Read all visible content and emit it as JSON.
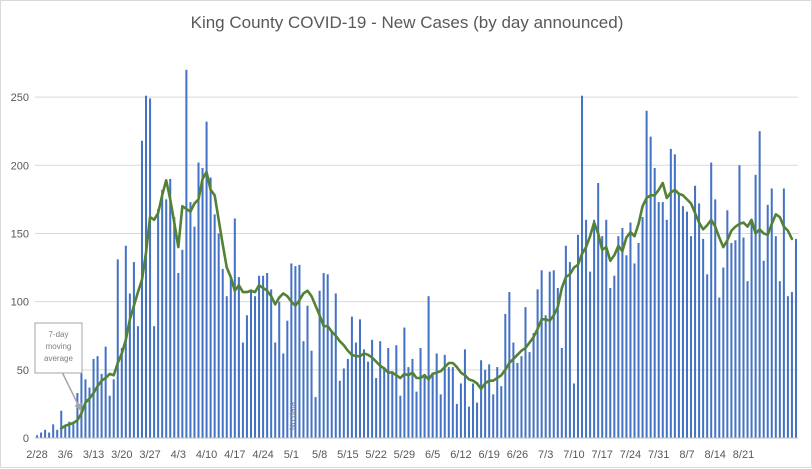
{
  "chart_data": {
    "type": "bar",
    "title": "King County COVID-19 - New Cases (by day announced)",
    "xlabel": "",
    "ylabel": "",
    "ylim": [
      0,
      275
    ],
    "y_ticks": [
      0,
      50,
      100,
      150,
      200,
      250
    ],
    "x_tick_labels": [
      "2/28",
      "3/6",
      "3/13",
      "3/20",
      "3/27",
      "4/3",
      "4/10",
      "4/17",
      "4/24",
      "5/1",
      "5/8",
      "5/15",
      "5/22",
      "5/29",
      "6/5",
      "6/12",
      "6/19",
      "6/26",
      "7/3",
      "7/10",
      "7/17",
      "7/24",
      "7/31",
      "8/7",
      "8/14",
      "8/21"
    ],
    "grid": true,
    "legend": "none",
    "colors": {
      "bars": "#4472c4",
      "moving_average": "#548235",
      "grid": "#d9d9d9",
      "callout": "#a6a6a6"
    },
    "annotations": {
      "moving_average_callout": "7-day moving average",
      "no_data": "No data",
      "last_value_label": "146"
    },
    "series": [
      {
        "values": [
          2,
          4,
          6,
          4,
          10,
          6,
          20,
          8,
          12,
          10,
          33,
          74,
          43,
          37,
          58,
          60,
          47,
          67,
          31,
          43,
          131,
          66,
          141,
          106,
          129,
          82,
          218,
          251,
          249,
          82,
          168,
          182,
          175,
          190,
          162,
          121,
          138,
          270,
          173,
          155,
          202,
          198,
          232,
          191,
          164,
          150,
          124,
          104,
          118,
          161,
          118,
          70,
          90,
          109,
          104,
          119,
          119,
          121,
          109,
          70,
          100,
          62,
          86,
          128,
          126,
          127,
          71,
          97,
          64,
          30,
          108,
          121,
          120,
          78,
          106,
          42,
          51,
          58,
          89,
          70,
          87,
          65,
          56,
          72,
          44,
          71,
          52,
          66,
          49,
          68,
          31,
          81,
          52,
          58,
          34,
          66,
          47,
          104,
          48,
          62,
          32,
          61,
          52,
          52,
          25,
          40,
          65,
          23,
          40,
          26,
          57,
          50,
          54,
          32,
          52,
          38,
          91,
          107,
          70,
          55,
          60,
          96,
          63,
          77,
          109,
          123,
          90,
          122,
          123,
          110,
          66,
          141,
          129,
          40,
          149,
          251,
          160,
          122,
          160,
          187,
          148,
          160,
          110,
          119,
          148,
          154,
          134,
          158,
          128,
          143,
          162,
          240,
          221,
          198,
          173,
          173,
          160,
          212,
          208,
          180,
          170,
          166,
          148,
          185,
          172,
          146,
          120,
          202,
          175,
          103,
          125,
          167,
          143,
          145,
          200,
          147,
          115,
          158,
          193,
          225,
          130,
          171,
          183,
          148,
          115,
          183,
          104,
          107,
          146
        ],
        "moving_average": [
          null,
          null,
          null,
          null,
          null,
          null,
          7,
          9,
          10,
          11,
          13,
          18,
          26,
          29,
          33,
          38,
          42,
          44,
          47,
          46,
          55,
          62,
          72,
          87,
          97,
          107,
          116,
          136,
          162,
          160,
          165,
          178,
          189,
          175,
          158,
          140,
          170,
          168,
          166,
          172,
          175,
          190,
          195,
          182,
          178,
          160,
          142,
          125,
          118,
          108,
          112,
          107,
          107,
          108,
          107,
          112,
          110,
          108,
          104,
          98,
          103,
          106,
          104,
          100,
          97,
          101,
          106,
          108,
          104,
          97,
          90,
          82,
          82,
          78,
          75,
          71,
          68,
          64,
          61,
          60,
          60,
          62,
          61,
          59,
          56,
          53,
          51,
          48,
          48,
          46,
          44,
          47,
          46,
          48,
          44,
          44,
          46,
          43,
          47,
          48,
          49,
          52,
          55,
          55,
          52,
          48,
          46,
          43,
          42,
          40,
          36,
          40,
          42,
          42,
          44,
          46,
          50,
          55,
          58,
          61,
          64,
          66,
          70,
          74,
          80,
          87,
          87,
          86,
          90,
          96,
          110,
          118,
          120,
          125,
          127,
          135,
          140,
          148,
          158,
          150,
          138,
          140,
          130,
          134,
          141,
          137,
          147,
          151,
          148,
          157,
          170,
          176,
          178,
          178,
          182,
          187,
          176,
          180,
          182,
          179,
          178,
          175,
          172,
          165,
          158,
          153,
          156,
          160,
          155,
          147,
          140,
          145,
          152,
          155,
          157,
          158,
          155,
          160,
          150,
          153,
          150,
          149,
          157,
          164,
          162,
          155,
          152,
          146
        ]
      }
    ]
  }
}
